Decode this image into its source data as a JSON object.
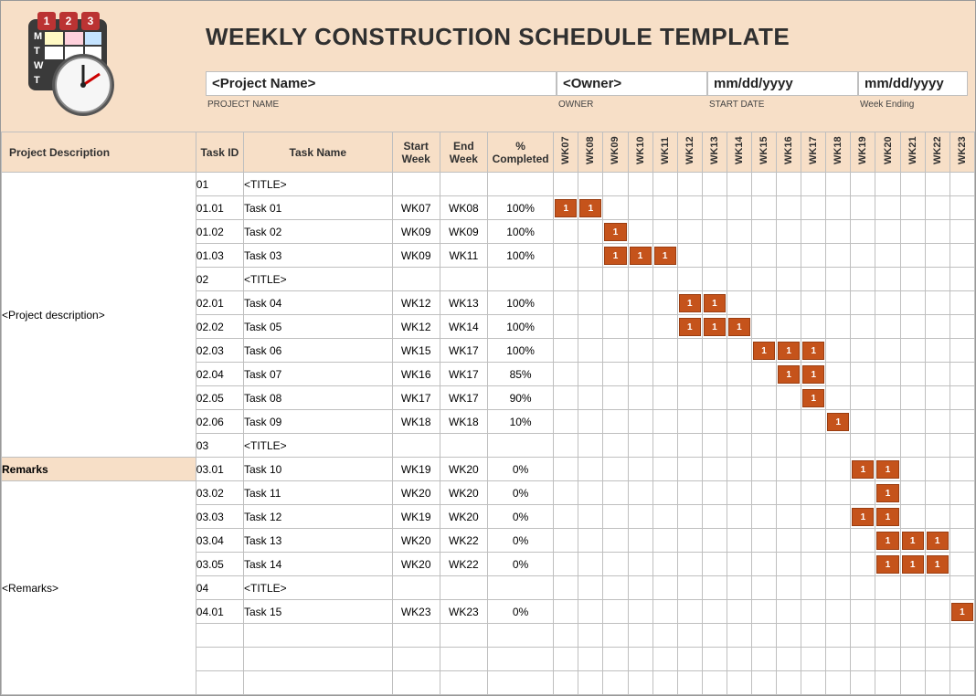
{
  "colors": {
    "header_band_bg": "#f7dfc7",
    "table_header_bg": "#f7dfc7",
    "grid_line": "#bfbfbf",
    "bar_fill": "#c5531b",
    "bar_border": "#9a3d11",
    "bar_text": "#ffffff",
    "page_bg": "#ffffff",
    "text": "#303030"
  },
  "title": "WEEKLY CONSTRUCTION SCHEDULE TEMPLATE",
  "meta": {
    "project_name": {
      "value": "<Project Name>",
      "label": "PROJECT NAME"
    },
    "owner": {
      "value": "<Owner>",
      "label": "OWNER"
    },
    "start_date": {
      "value": "mm/dd/yyyy",
      "label": "START DATE"
    },
    "week_ending": {
      "value": "mm/dd/yyyy",
      "label": "Week Ending"
    }
  },
  "side": {
    "desc_header": "Project Description",
    "desc_value": "<Project description>",
    "remarks_header": "Remarks",
    "remarks_value": "<Remarks>"
  },
  "columns": {
    "task_id": "Task ID",
    "task_name": "Task Name",
    "start_week": "Start Week",
    "end_week": "End Week",
    "pct": "% Completed"
  },
  "weeks": [
    "WK07",
    "WK08",
    "WK09",
    "WK10",
    "WK11",
    "WK12",
    "WK13",
    "WK14",
    "WK15",
    "WK16",
    "WK17",
    "WK18",
    "WK19",
    "WK20",
    "WK21",
    "WK22",
    "WK23"
  ],
  "bar_label": "1",
  "rows": [
    {
      "id": "01",
      "name": "<TITLE>",
      "start": "",
      "end": "",
      "pct": "",
      "bars": []
    },
    {
      "id": "01.01",
      "name": "Task 01",
      "start": "WK07",
      "end": "WK08",
      "pct": "100%",
      "bars": [
        "WK07",
        "WK08"
      ]
    },
    {
      "id": "01.02",
      "name": "Task 02",
      "start": "WK09",
      "end": "WK09",
      "pct": "100%",
      "bars": [
        "WK09"
      ]
    },
    {
      "id": "01.03",
      "name": "Task 03",
      "start": "WK09",
      "end": "WK11",
      "pct": "100%",
      "bars": [
        "WK09",
        "WK10",
        "WK11"
      ]
    },
    {
      "id": "02",
      "name": "<TITLE>",
      "start": "",
      "end": "",
      "pct": "",
      "bars": []
    },
    {
      "id": "02.01",
      "name": "Task 04",
      "start": "WK12",
      "end": "WK13",
      "pct": "100%",
      "bars": [
        "WK12",
        "WK13"
      ]
    },
    {
      "id": "02.02",
      "name": "Task 05",
      "start": "WK12",
      "end": "WK14",
      "pct": "100%",
      "bars": [
        "WK12",
        "WK13",
        "WK14"
      ]
    },
    {
      "id": "02.03",
      "name": "Task 06",
      "start": "WK15",
      "end": "WK17",
      "pct": "100%",
      "bars": [
        "WK15",
        "WK16",
        "WK17"
      ]
    },
    {
      "id": "02.04",
      "name": "Task 07",
      "start": "WK16",
      "end": "WK17",
      "pct": "85%",
      "bars": [
        "WK16",
        "WK17"
      ]
    },
    {
      "id": "02.05",
      "name": "Task 08",
      "start": "WK17",
      "end": "WK17",
      "pct": "90%",
      "bars": [
        "WK17"
      ]
    },
    {
      "id": "02.06",
      "name": "Task 09",
      "start": "WK18",
      "end": "WK18",
      "pct": "10%",
      "bars": [
        "WK18"
      ]
    },
    {
      "id": "03",
      "name": "<TITLE>",
      "start": "",
      "end": "",
      "pct": "",
      "bars": []
    },
    {
      "id": "03.01",
      "name": "Task 10",
      "start": "WK19",
      "end": "WK20",
      "pct": "0%",
      "bars": [
        "WK19",
        "WK20"
      ]
    },
    {
      "id": "03.02",
      "name": "Task 11",
      "start": "WK20",
      "end": "WK20",
      "pct": "0%",
      "bars": [
        "WK20"
      ]
    },
    {
      "id": "03.03",
      "name": "Task 12",
      "start": "WK19",
      "end": "WK20",
      "pct": "0%",
      "bars": [
        "WK19",
        "WK20"
      ]
    },
    {
      "id": "03.04",
      "name": "Task 13",
      "start": "WK20",
      "end": "WK22",
      "pct": "0%",
      "bars": [
        "WK20",
        "WK21",
        "WK22"
      ]
    },
    {
      "id": "03.05",
      "name": "Task 14",
      "start": "WK20",
      "end": "WK22",
      "pct": "0%",
      "bars": [
        "WK20",
        "WK21",
        "WK22"
      ]
    },
    {
      "id": "04",
      "name": "<TITLE>",
      "start": "",
      "end": "",
      "pct": "",
      "bars": []
    },
    {
      "id": "04.01",
      "name": "Task 15",
      "start": "WK23",
      "end": "WK23",
      "pct": "0%",
      "bars": [
        "WK23"
      ]
    }
  ],
  "blank_rows": 3
}
